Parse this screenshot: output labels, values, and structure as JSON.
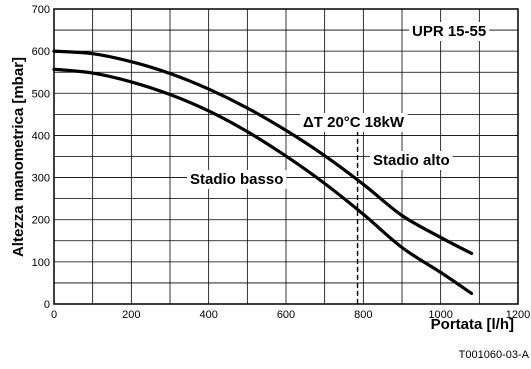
{
  "chart_data": {
    "type": "line",
    "xlabel": "Portata [l/h]",
    "ylabel": "Altezza manometrica [mbar]",
    "xlim": [
      0,
      1200
    ],
    "ylim": [
      0,
      700
    ],
    "x_ticks": [
      0,
      200,
      400,
      600,
      800,
      1000,
      1200
    ],
    "y_ticks": [
      0,
      100,
      200,
      300,
      400,
      500,
      600,
      700
    ],
    "x_grid_step": 100,
    "y_grid_step": 50,
    "grid": true,
    "series": [
      {
        "name": "Stadio alto",
        "x": [
          0,
          100,
          200,
          300,
          400,
          500,
          600,
          700,
          800,
          900,
          1000,
          1080
        ],
        "y": [
          600,
          594,
          575,
          547,
          510,
          465,
          412,
          352,
          284,
          210,
          158,
          120
        ]
      },
      {
        "name": "Stadio basso",
        "x": [
          0,
          100,
          200,
          300,
          400,
          500,
          600,
          700,
          800,
          900,
          1000,
          1080
        ],
        "y": [
          557,
          548,
          527,
          497,
          458,
          409,
          351,
          286,
          213,
          134,
          75,
          25
        ]
      }
    ],
    "reference_line": {
      "x": 785,
      "y_from": 0,
      "y_to": 420,
      "label": "ΔT 20°C 18kW"
    },
    "box_label": "UPR 15-55",
    "annotations": [
      {
        "text": "Stadio basso"
      },
      {
        "text": "Stadio alto"
      }
    ],
    "figure_ref": "T001060-03-A"
  }
}
